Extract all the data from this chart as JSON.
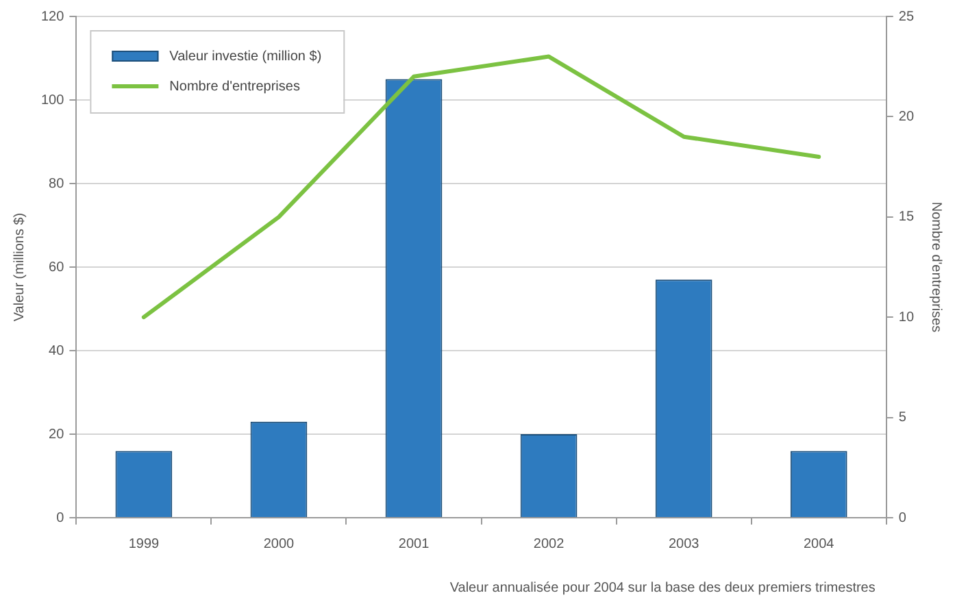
{
  "chart_data": {
    "type": "bar",
    "categories": [
      "1999",
      "2000",
      "2001",
      "2002",
      "2003",
      "2004"
    ],
    "series": [
      {
        "name": "Valeur investie (million $)",
        "color": "#2e7bbf",
        "values": [
          16,
          23,
          105,
          20,
          57,
          16
        ]
      },
      {
        "name": "Nombre d'entreprises",
        "type": "line",
        "axis": "y2",
        "color": "#7cc242",
        "values": [
          10,
          15,
          22,
          23,
          19,
          18
        ]
      }
    ],
    "ylabel": "Valeur (millions $)",
    "y2label": "Nombre d'entreprises",
    "ylim": [
      0,
      120
    ],
    "yticks": [
      0,
      20,
      40,
      60,
      80,
      100,
      120
    ],
    "y2lim": [
      0,
      25
    ],
    "y2ticks": [
      0,
      5,
      10,
      15,
      20,
      25
    ],
    "grid": "y",
    "legend": "top left",
    "annotations": [
      "Valeur annualisée pour 2004 sur la base des deux premiers trimestres"
    ]
  }
}
